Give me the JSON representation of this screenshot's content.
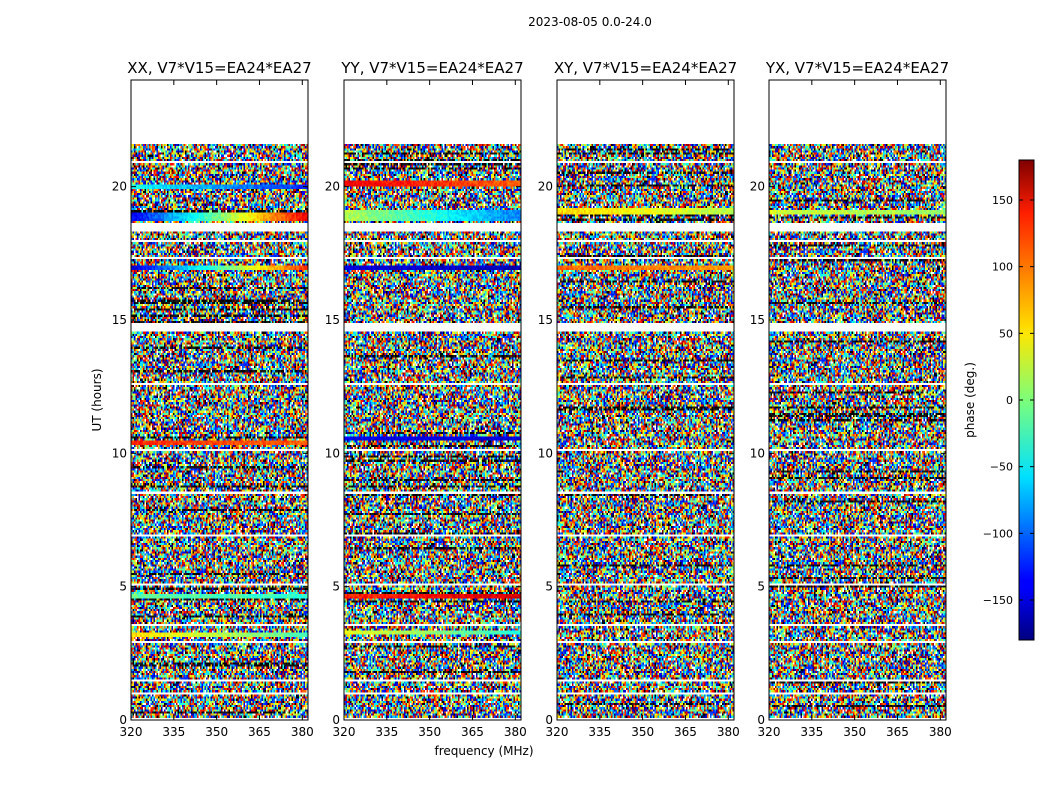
{
  "chart_data": {
    "type": "heatmap",
    "suptitle": "2023-08-05 0.0-24.0",
    "xlabel": "frequency (MHz)",
    "ylabel": "UT (hours)",
    "xlim": [
      320,
      382
    ],
    "ylim": [
      0,
      24
    ],
    "x_ticks": [
      320,
      335,
      350,
      365,
      380
    ],
    "y_ticks": [
      0,
      5,
      10,
      15,
      20
    ],
    "data_extent_hours": [
      0,
      21.6
    ],
    "panels": [
      {
        "title": "XX, V7*V15=EA24*EA27",
        "coherent_bands": [
          {
            "hours": [
              18.7,
              19.05
            ],
            "phase_start": -140,
            "phase_end": 140
          },
          {
            "hours": [
              19.9,
              20.1
            ],
            "phase_start": -40,
            "phase_end": -120
          },
          {
            "hours": [
              16.9,
              17.05
            ],
            "phase_start": -150,
            "phase_end": 120
          },
          {
            "hours": [
              10.3,
              10.45
            ],
            "phase_start": 120,
            "phase_end": 100
          },
          {
            "hours": [
              3.1,
              3.3
            ],
            "phase_start": 60,
            "phase_end": -20
          },
          {
            "hours": [
              4.55,
              4.7
            ],
            "phase_start": -10,
            "phase_end": -30
          }
        ]
      },
      {
        "title": "YY, V7*V15=EA24*EA27",
        "coherent_bands": [
          {
            "hours": [
              18.75,
              19.15
            ],
            "phase_start": 20,
            "phase_end": -90
          },
          {
            "hours": [
              20.0,
              20.2
            ],
            "phase_start": 140,
            "phase_end": 100
          },
          {
            "hours": [
              16.9,
              17.05
            ],
            "phase_start": -150,
            "phase_end": -160
          },
          {
            "hours": [
              10.45,
              10.6
            ],
            "phase_start": -140,
            "phase_end": -150
          },
          {
            "hours": [
              4.55,
              4.7
            ],
            "phase_start": 120,
            "phase_end": 150
          },
          {
            "hours": [
              3.2,
              3.4
            ],
            "phase_start": 40,
            "phase_end": -30
          }
        ]
      },
      {
        "title": "XY, V7*V15=EA24*EA27",
        "coherent_bands": [
          {
            "hours": [
              16.9,
              17.05
            ],
            "phase_start": 100,
            "phase_end": 80
          },
          {
            "hours": [
              19.0,
              19.2
            ],
            "phase_start": 60,
            "phase_end": 20
          }
        ]
      },
      {
        "title": "YX, V7*V15=EA24*EA27",
        "coherent_bands": [
          {
            "hours": [
              18.95,
              19.1
            ],
            "phase_start": 30,
            "phase_end": 10
          }
        ]
      }
    ],
    "gaps_hours": [
      [
        0.0,
        0.04
      ],
      [
        0.95,
        1.05
      ],
      [
        1.45,
        1.55
      ],
      [
        2.85,
        2.95
      ],
      [
        3.55,
        3.62
      ],
      [
        5.05,
        5.12
      ],
      [
        6.9,
        6.97
      ],
      [
        8.45,
        8.55
      ],
      [
        9.1,
        9.15
      ],
      [
        10.05,
        10.12
      ],
      [
        12.55,
        12.62
      ],
      [
        14.55,
        14.85
      ],
      [
        17.3,
        17.37
      ],
      [
        17.95,
        18.02
      ],
      [
        18.35,
        18.6
      ],
      [
        20.85,
        20.92
      ]
    ],
    "colorbar": {
      "label": "phase (deg.)",
      "range": [
        -180,
        180
      ],
      "ticks": [
        -150,
        -100,
        -50,
        0,
        50,
        100,
        150
      ],
      "colormap": "jet"
    }
  }
}
